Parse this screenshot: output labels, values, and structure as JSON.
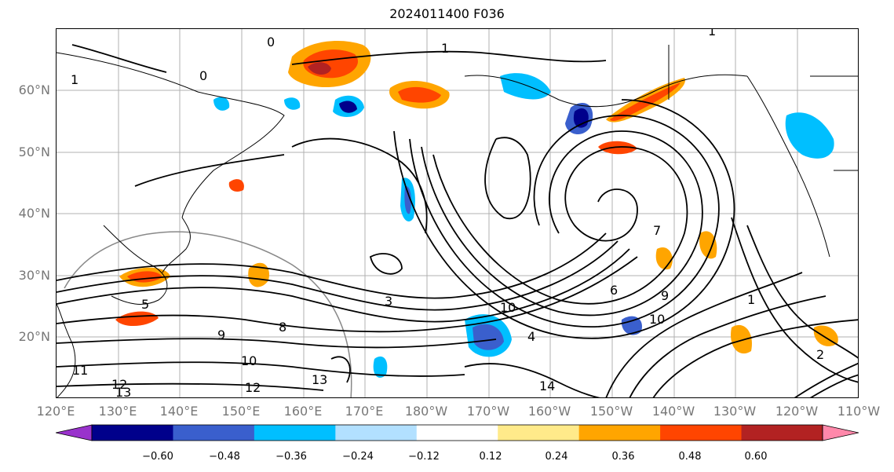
{
  "title": "2024011400 F036",
  "lat_labels": [
    "60°N",
    "50°N",
    "40°N",
    "30°N",
    "20°N"
  ],
  "lon_labels": [
    "120°E",
    "130°E",
    "140°E",
    "150°E",
    "160°E",
    "170°E",
    "180°W",
    "170°W",
    "160°W",
    "150°W",
    "140°W",
    "130°W",
    "120°W",
    "110°W"
  ],
  "colorbar": {
    "colors": [
      "#9932CC",
      "#00008B",
      "#3A5FCD",
      "#00BFFF",
      "#B2E0FF",
      "#FFFFFF",
      "#FFEA8A",
      "#FFA500",
      "#FF4500",
      "#B22222",
      "#FF88AA"
    ],
    "ticks": [
      "−0.60",
      "−0.48",
      "−0.36",
      "−0.24",
      "−0.12",
      "0.12",
      "0.24",
      "0.36",
      "0.48",
      "0.60"
    ]
  },
  "contour_labels": [
    "0",
    "0",
    "1",
    "1",
    "1",
    "1",
    "2",
    "3",
    "4",
    "5",
    "6",
    "7",
    "8",
    "9",
    "9",
    "10",
    "10",
    "10",
    "11",
    "12",
    "12",
    "13",
    "13",
    "14"
  ]
}
